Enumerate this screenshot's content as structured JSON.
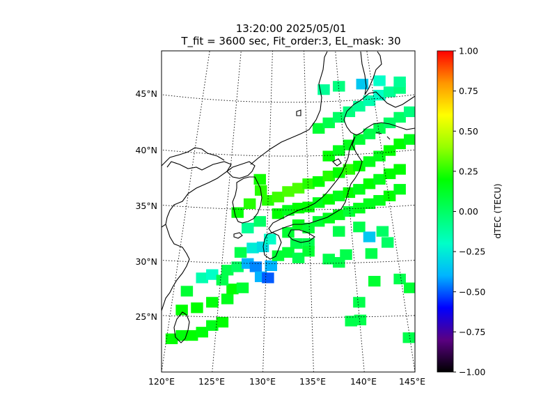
{
  "title": "13:20:00 2025/05/01",
  "subtitle": "T_fit = 3600 sec, Fit_order:3, EL_mask: 30",
  "colorbar": {
    "label": "dTEC (TECU)",
    "range": [
      -1.0,
      1.0
    ],
    "ticks": [
      "1.00",
      "0.75",
      "0.50",
      "0.25",
      "0.00",
      "−0.25",
      "−0.50",
      "−0.75",
      "−1.00"
    ],
    "stops": [
      "#000000",
      "#5a0082",
      "#0000ff",
      "#00b4ff",
      "#00ffc8",
      "#00ff64",
      "#00ff00",
      "#96ff00",
      "#ffff00",
      "#ff9600",
      "#ff0000"
    ]
  },
  "chart_data": {
    "type": "heatmap",
    "map": {
      "lon_range": [
        120,
        145
      ],
      "lat_range": [
        20,
        49
      ],
      "lon_ticks": [
        "120°E",
        "125°E",
        "130°E",
        "135°E",
        "140°E",
        "145°E"
      ],
      "lat_ticks": [
        "25°N",
        "30°N",
        "35°N",
        "40°N",
        "45°N"
      ],
      "lat_values": [
        25,
        30,
        35,
        40,
        45
      ],
      "lon_values": [
        120,
        125,
        130,
        135,
        140,
        145
      ],
      "grid": "dotted",
      "coastlines": true
    },
    "value_unit": "TECU",
    "cell_size_deg": 0.6,
    "cells": [
      [
        121,
        23,
        0.2
      ],
      [
        122,
        23.3,
        0.18
      ],
      [
        123,
        23.3,
        0.2
      ],
      [
        124,
        23.6,
        0.18
      ],
      [
        125,
        24.2,
        0.15
      ],
      [
        126,
        24.5,
        0.2
      ],
      [
        122,
        25.6,
        0.2
      ],
      [
        123.5,
        25.8,
        0.2
      ],
      [
        125,
        26.3,
        0.18
      ],
      [
        126.5,
        26.6,
        0.15
      ],
      [
        127,
        27.5,
        0.2
      ],
      [
        128,
        27.6,
        0.1
      ],
      [
        122.5,
        27.3,
        0.1
      ],
      [
        124,
        28.5,
        -0.15
      ],
      [
        125,
        28.8,
        -0.2
      ],
      [
        126,
        28.3,
        0.05
      ],
      [
        126.5,
        29.2,
        0.05
      ],
      [
        127.5,
        29.5,
        0.0
      ],
      [
        128.5,
        29.8,
        -0.4
      ],
      [
        129.3,
        29.5,
        -0.45
      ],
      [
        129.8,
        28.6,
        -0.4
      ],
      [
        130.5,
        28.5,
        -0.5
      ],
      [
        130.8,
        29.6,
        -0.4
      ],
      [
        131.5,
        30.5,
        0.1
      ],
      [
        127.8,
        30.8,
        0.05
      ],
      [
        129,
        31.2,
        -0.25
      ],
      [
        130,
        31.3,
        -0.3
      ],
      [
        130.7,
        32.0,
        -0.2
      ],
      [
        128.5,
        33.0,
        -0.1
      ],
      [
        129.7,
        33.6,
        0.0
      ],
      [
        127.5,
        34.4,
        0.2
      ],
      [
        128.7,
        35.2,
        0.25
      ],
      [
        129.8,
        36.4,
        0.25
      ],
      [
        129.7,
        37.4,
        0.22
      ],
      [
        130.5,
        35.5,
        0.25
      ],
      [
        131.5,
        35.8,
        0.28
      ],
      [
        132.5,
        36.3,
        0.3
      ],
      [
        133.5,
        36.6,
        0.3
      ],
      [
        134.5,
        37.0,
        0.25
      ],
      [
        135.5,
        37.2,
        0.2
      ],
      [
        136.5,
        37.7,
        0.25
      ],
      [
        137.5,
        38.0,
        0.2
      ],
      [
        138.5,
        38.3,
        0.25
      ],
      [
        139.5,
        38.6,
        0.2
      ],
      [
        140.5,
        39.0,
        0.15
      ],
      [
        141.5,
        39.5,
        0.15
      ],
      [
        142.5,
        40.0,
        0.2
      ],
      [
        143.5,
        40.6,
        0.2
      ],
      [
        144.5,
        41.0,
        0.15
      ],
      [
        131.5,
        34.3,
        0.2
      ],
      [
        132.5,
        34.6,
        0.15
      ],
      [
        133.5,
        34.8,
        0.2
      ],
      [
        134.5,
        34.9,
        0.2
      ],
      [
        135.5,
        35.3,
        0.15
      ],
      [
        136.5,
        35.6,
        0.2
      ],
      [
        137.5,
        35.9,
        0.15
      ],
      [
        138.5,
        36.2,
        0.2
      ],
      [
        139.5,
        36.5,
        0.15
      ],
      [
        140.5,
        37.0,
        0.2
      ],
      [
        141.5,
        37.4,
        0.15
      ],
      [
        142.5,
        37.9,
        0.2
      ],
      [
        143.5,
        38.3,
        0.2
      ],
      [
        136.5,
        39.5,
        0.2
      ],
      [
        137.5,
        40.0,
        0.15
      ],
      [
        138.5,
        40.5,
        0.15
      ],
      [
        139.5,
        41.0,
        0.1
      ],
      [
        140.5,
        41.5,
        0.05
      ],
      [
        141.5,
        42.0,
        0.05
      ],
      [
        142.5,
        42.5,
        0.0
      ],
      [
        143.5,
        43.0,
        0.0
      ],
      [
        144.5,
        43.5,
        -0.05
      ],
      [
        135.5,
        42.0,
        0.1
      ],
      [
        136.5,
        42.5,
        0.05
      ],
      [
        137.5,
        43.0,
        0.0
      ],
      [
        138.5,
        43.5,
        -0.05
      ],
      [
        139.5,
        44.0,
        -0.1
      ],
      [
        140.5,
        44.5,
        -0.15
      ],
      [
        141.5,
        45.0,
        -0.2
      ],
      [
        142.5,
        45.3,
        -0.1
      ],
      [
        143.5,
        45.6,
        -0.05
      ],
      [
        136,
        45.5,
        -0.1
      ],
      [
        137.5,
        45.8,
        -0.05
      ],
      [
        139.8,
        46.0,
        -0.35
      ],
      [
        141.5,
        46.3,
        -0.2
      ],
      [
        143.5,
        46.2,
        -0.1
      ],
      [
        133.5,
        33.3,
        0.15
      ],
      [
        134.5,
        33.0,
        0.1
      ],
      [
        135.5,
        33.6,
        0.1
      ],
      [
        136.5,
        33.9,
        0.15
      ],
      [
        137.5,
        34.2,
        0.15
      ],
      [
        138.5,
        34.5,
        0.1
      ],
      [
        139.5,
        34.8,
        0.15
      ],
      [
        140.5,
        35.2,
        0.15
      ],
      [
        141.5,
        35.5,
        0.15
      ],
      [
        142.5,
        35.9,
        0.2
      ],
      [
        143.5,
        36.5,
        0.15
      ],
      [
        132.5,
        32.6,
        0.1
      ],
      [
        133.3,
        31.6,
        0.05
      ],
      [
        134.5,
        31.6,
        0.05
      ],
      [
        137.5,
        32.7,
        0.05
      ],
      [
        139.5,
        33.1,
        0.05
      ],
      [
        140.5,
        32.2,
        -0.35
      ],
      [
        141.8,
        32.7,
        0.0
      ],
      [
        142.3,
        31.7,
        0.0
      ],
      [
        140.7,
        30.7,
        0.05
      ],
      [
        138.2,
        30.6,
        0.05
      ],
      [
        136.5,
        30.2,
        0.05
      ],
      [
        137.5,
        29.9,
        0.05
      ],
      [
        141,
        28.2,
        0.1
      ],
      [
        143.5,
        28.4,
        0.05
      ],
      [
        144.5,
        27.6,
        0.1
      ],
      [
        139.5,
        26.3,
        0.05
      ],
      [
        138.7,
        24.6,
        0.05
      ],
      [
        139.6,
        24.7,
        0.05
      ],
      [
        144.4,
        23.1,
        0.05
      ],
      [
        132.5,
        30.8,
        0.1
      ],
      [
        133.5,
        30.3,
        0.05
      ],
      [
        134.5,
        30.9,
        0.1
      ]
    ]
  }
}
